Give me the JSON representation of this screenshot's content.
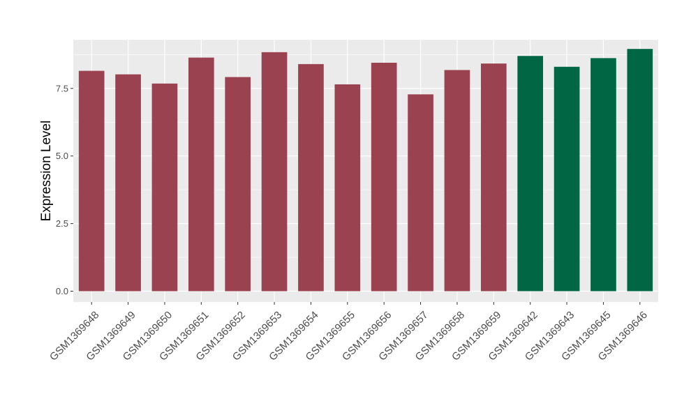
{
  "chart_data": {
    "type": "bar",
    "title": "",
    "xlabel": "",
    "ylabel": "Expression Level",
    "categories": [
      "GSM1369648",
      "GSM1369649",
      "GSM1369650",
      "GSM1369651",
      "GSM1369652",
      "GSM1369653",
      "GSM1369654",
      "GSM1369655",
      "GSM1369656",
      "GSM1369657",
      "GSM1369658",
      "GSM1369659",
      "GSM1369642",
      "GSM1369643",
      "GSM1369645",
      "GSM1369646"
    ],
    "values": [
      8.15,
      8.02,
      7.68,
      8.64,
      7.92,
      8.84,
      8.4,
      7.65,
      8.45,
      7.28,
      8.18,
      8.42,
      8.7,
      8.3,
      8.62,
      8.96
    ],
    "group_colors": {
      "group_a": "#9b4250",
      "group_b": "#006644"
    },
    "bar_groups": [
      "group_a",
      "group_a",
      "group_a",
      "group_a",
      "group_a",
      "group_a",
      "group_a",
      "group_a",
      "group_a",
      "group_a",
      "group_a",
      "group_a",
      "group_b",
      "group_b",
      "group_b",
      "group_b"
    ],
    "ylim": [
      -0.4,
      9.3
    ],
    "yticks": [
      0.0,
      2.5,
      5.0,
      7.5
    ],
    "ytick_labels": [
      "0.0",
      "2.5",
      "5.0",
      "7.5"
    ],
    "grid": true,
    "legend": "none",
    "panel_background": "#ebebeb",
    "grid_color": "#ffffff"
  }
}
